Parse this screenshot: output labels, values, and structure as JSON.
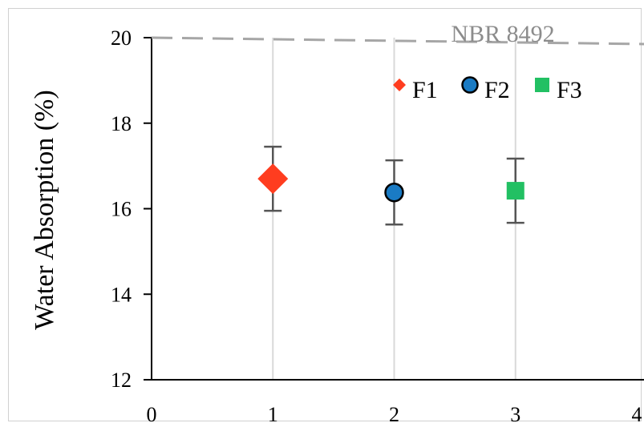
{
  "chart_data": {
    "type": "scatter",
    "title": "",
    "xlabel": "",
    "ylabel": "Water Absorption (%)",
    "xlim": [
      0,
      4
    ],
    "ylim": [
      12,
      20
    ],
    "x_ticks": [
      "0",
      "1",
      "2",
      "3",
      "4"
    ],
    "y_ticks": [
      "12",
      "14",
      "16",
      "18",
      "20"
    ],
    "grid": "vertical",
    "legend_placement": "top-right",
    "series": [
      {
        "name": "F1",
        "marker": "diamond",
        "color": "#ff3d1f",
        "x": 1,
        "y": 16.7,
        "err": 0.75
      },
      {
        "name": "F2",
        "marker": "circle",
        "color": "#1a7bc4",
        "x": 2,
        "y": 16.38,
        "err": 0.75
      },
      {
        "name": "F3",
        "marker": "square",
        "color": "#22c063",
        "x": 3,
        "y": 16.42,
        "err": 0.75
      }
    ],
    "reference_line": {
      "label": "NBR 8492",
      "y_start": 20.0,
      "y_end": 19.85,
      "color": "#a6a6a6"
    }
  }
}
